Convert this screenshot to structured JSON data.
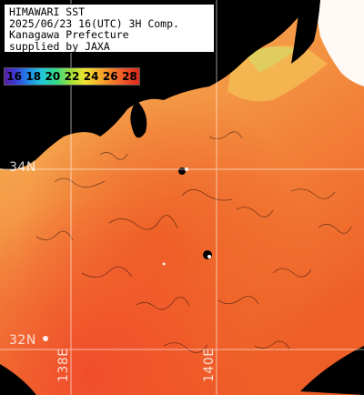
{
  "title": {
    "line1": "HIMAWARI SST",
    "line2": "2025/06/23 16(UTC) 3H Comp.",
    "line3": "Kanagawa Prefecture",
    "line4": "supplied by JAXA"
  },
  "legend": {
    "values": [
      "16",
      "18",
      "20",
      "22",
      "24",
      "26",
      "28"
    ]
  },
  "grid_labels": {
    "lat_upper": "34N",
    "lat_lower": "32N",
    "lon_left": "138E",
    "lon_right": "140E"
  },
  "colors": {
    "land": "#000000",
    "cloud": "#ffffff",
    "sst_cool": "#f2b04a",
    "sst_mid": "#f59040",
    "sst_warm": "#f0652a",
    "grid": "#ffffff"
  }
}
